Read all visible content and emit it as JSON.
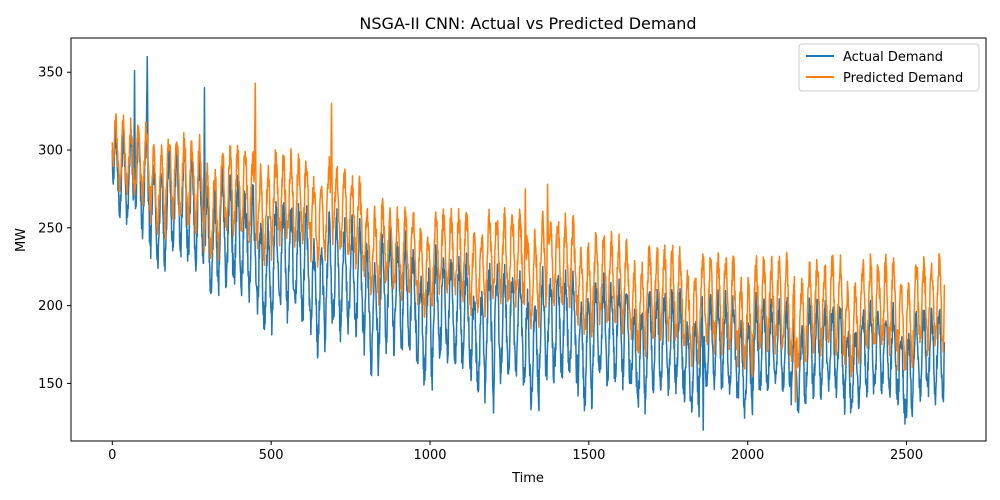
{
  "chart_data": {
    "type": "line",
    "title": "NSGA-II CNN: Actual vs Predicted Demand",
    "xlabel": "Time",
    "ylabel": "MW",
    "xlim": [
      -130,
      2750
    ],
    "ylim": [
      113,
      372
    ],
    "xticks": [
      0,
      500,
      1000,
      1500,
      2000,
      2500
    ],
    "yticks": [
      150,
      200,
      250,
      300,
      350
    ],
    "legend_position": "top-right",
    "grid": false,
    "n_points": 2620,
    "series": [
      {
        "name": "Actual Demand",
        "color": "#1f77b4",
        "key_points": [
          {
            "x": 0,
            "y": 300
          },
          {
            "x": 70,
            "y": 351
          },
          {
            "x": 110,
            "y": 360
          },
          {
            "x": 290,
            "y": 340
          },
          {
            "x": 420,
            "y": 250
          },
          {
            "x": 800,
            "y": 240
          },
          {
            "x": 1000,
            "y": 220
          },
          {
            "x": 1200,
            "y": 131
          },
          {
            "x": 1500,
            "y": 200
          },
          {
            "x": 1860,
            "y": 120
          },
          {
            "x": 2000,
            "y": 180
          },
          {
            "x": 2500,
            "y": 128
          },
          {
            "x": 2620,
            "y": 184
          }
        ],
        "envelope": [
          {
            "x": 0,
            "upper": 315,
            "lower": 252
          },
          {
            "x": 300,
            "upper": 295,
            "lower": 215
          },
          {
            "x": 500,
            "upper": 268,
            "lower": 190
          },
          {
            "x": 800,
            "upper": 252,
            "lower": 170
          },
          {
            "x": 1000,
            "upper": 238,
            "lower": 160
          },
          {
            "x": 1200,
            "upper": 225,
            "lower": 148
          },
          {
            "x": 1500,
            "upper": 218,
            "lower": 145
          },
          {
            "x": 1800,
            "upper": 208,
            "lower": 140
          },
          {
            "x": 2000,
            "upper": 205,
            "lower": 138
          },
          {
            "x": 2300,
            "upper": 200,
            "lower": 138
          },
          {
            "x": 2620,
            "upper": 198,
            "lower": 135
          }
        ]
      },
      {
        "name": "Predicted Demand",
        "color": "#ff7f0e",
        "key_points": [
          {
            "x": 0,
            "y": 305
          },
          {
            "x": 450,
            "y": 343
          },
          {
            "x": 690,
            "y": 330
          },
          {
            "x": 1300,
            "y": 275
          },
          {
            "x": 1370,
            "y": 278
          },
          {
            "x": 2150,
            "y": 138
          },
          {
            "x": 2620,
            "y": 228
          }
        ],
        "envelope": [
          {
            "x": 0,
            "upper": 322,
            "lower": 272
          },
          {
            "x": 300,
            "upper": 305,
            "lower": 240
          },
          {
            "x": 500,
            "upper": 300,
            "lower": 238
          },
          {
            "x": 700,
            "upper": 292,
            "lower": 232
          },
          {
            "x": 900,
            "upper": 262,
            "lower": 202
          },
          {
            "x": 1100,
            "upper": 260,
            "lower": 200
          },
          {
            "x": 1400,
            "upper": 258,
            "lower": 195
          },
          {
            "x": 1600,
            "upper": 242,
            "lower": 180
          },
          {
            "x": 1800,
            "upper": 235,
            "lower": 170
          },
          {
            "x": 2000,
            "upper": 230,
            "lower": 165
          },
          {
            "x": 2300,
            "upper": 230,
            "lower": 165
          },
          {
            "x": 2620,
            "upper": 230,
            "lower": 165
          }
        ]
      }
    ]
  }
}
